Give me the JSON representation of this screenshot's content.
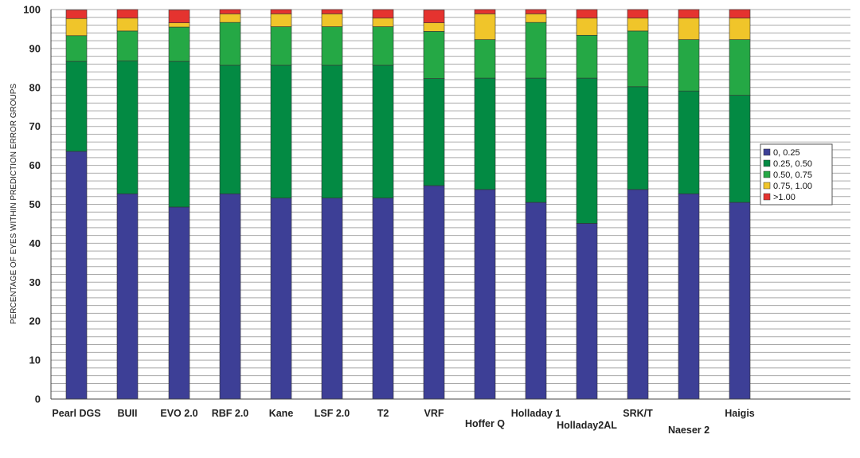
{
  "chart_data": {
    "type": "bar",
    "stacked": true,
    "ylabel": "PERCENTAGE OF EYES WITHIN PREDICTION ERROR GROUPS",
    "xlabel": "",
    "ylim": [
      0,
      100
    ],
    "y_ticks": [
      0,
      10,
      20,
      30,
      40,
      50,
      60,
      70,
      80,
      90,
      100
    ],
    "grid": "horizontal minor gridlines every 2 units",
    "legend_position": "right",
    "categories": [
      "Pearl DGS",
      "BUII",
      "EVO 2.0",
      "RBF 2.0",
      "Kane",
      "LSF 2.0",
      "T2",
      "VRF",
      "Hoffer Q",
      "Holladay 1",
      "Holladay2AL",
      "SRK/T",
      "Naeser 2",
      "Haigis"
    ],
    "series": [
      {
        "name": "0, 0.25",
        "color": "#3d3f96",
        "values": [
          63.6,
          52.7,
          49.3,
          52.7,
          51.6,
          51.6,
          51.6,
          54.8,
          53.8,
          50.5,
          45.1,
          53.8,
          52.7,
          50.5
        ]
      },
      {
        "name": "0.25, 0.50",
        "color": "#038a43",
        "values": [
          23.1,
          34.1,
          37.4,
          33.0,
          34.1,
          34.1,
          34.1,
          27.5,
          28.6,
          31.9,
          37.3,
          26.4,
          26.4,
          27.5
        ]
      },
      {
        "name": "0.50, 0.75",
        "color": "#25a845",
        "values": [
          6.6,
          7.7,
          8.8,
          11.0,
          9.9,
          9.9,
          9.9,
          12.1,
          9.9,
          14.3,
          11.0,
          14.3,
          13.2,
          14.3
        ]
      },
      {
        "name": "0.75, 1.00",
        "color": "#f0c52a",
        "values": [
          4.4,
          3.3,
          1.1,
          2.2,
          3.3,
          3.3,
          2.2,
          2.2,
          6.6,
          2.2,
          4.4,
          3.3,
          5.5,
          5.5
        ]
      },
      {
        "name": ">1.00",
        "color": "#e5332f",
        "values": [
          2.2,
          2.2,
          3.3,
          1.1,
          1.1,
          1.1,
          2.2,
          3.3,
          1.1,
          1.1,
          2.2,
          2.2,
          2.2,
          2.2
        ]
      }
    ]
  }
}
